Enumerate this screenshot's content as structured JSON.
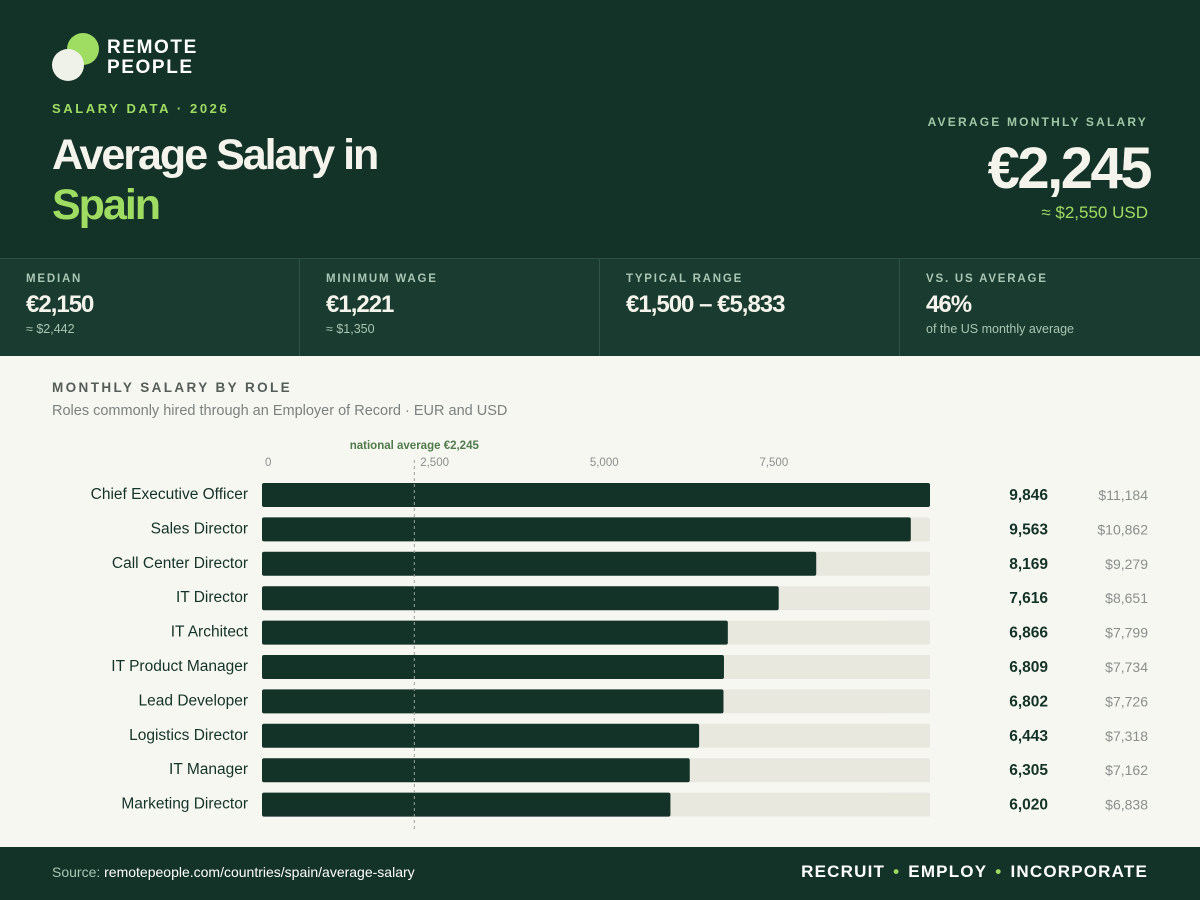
{
  "brand": {
    "line1": "REMOTE",
    "line2": "PEOPLE"
  },
  "header": {
    "eyebrow": "SALARY DATA · 2026",
    "title_line1": "Average Salary in",
    "title_line2": "Spain",
    "hero_label": "AVERAGE MONTHLY SALARY",
    "hero_value": "€2,245",
    "hero_usd": "≈ $2,550 USD"
  },
  "stats": [
    {
      "label": "MEDIAN",
      "value": "€2,150",
      "sub": "≈ $2,442"
    },
    {
      "label": "MINIMUM WAGE",
      "value": "€1,221",
      "sub": "≈ $1,350"
    },
    {
      "label": "TYPICAL RANGE",
      "value": "€1,500 – €5,833",
      "sub": ""
    },
    {
      "label": "VS. US AVERAGE",
      "value": "46%",
      "sub": "of the US monthly average"
    }
  ],
  "section": {
    "title": "MONTHLY SALARY BY ROLE",
    "subtitle": "Roles commonly hired through an Employer of Record · EUR and USD"
  },
  "chart_data": {
    "type": "bar",
    "orientation": "horizontal",
    "xlim": [
      0,
      9846
    ],
    "ticks": [
      0,
      2500,
      5000,
      7500
    ],
    "tick_labels": [
      "0",
      "2,500",
      "5,000",
      "7,500"
    ],
    "reference_line": {
      "value": 2245,
      "label": "national average €2,245"
    },
    "categories": [
      "Chief Executive Officer",
      "Sales Director",
      "Call Center Director",
      "IT Director",
      "IT Architect",
      "IT Product Manager",
      "Lead Developer",
      "Logistics Director",
      "IT Manager",
      "Marketing Director"
    ],
    "values": [
      9846,
      9563,
      8169,
      7616,
      6866,
      6809,
      6802,
      6443,
      6305,
      6020
    ],
    "value_labels": [
      "9,846",
      "9,563",
      "8,169",
      "7,616",
      "6,866",
      "6,809",
      "6,802",
      "6,443",
      "6,305",
      "6,020"
    ],
    "usd_labels": [
      "$11,184",
      "$10,862",
      "$9,279",
      "$8,651",
      "$7,799",
      "$7,734",
      "$7,726",
      "$7,318",
      "$7,162",
      "$6,838"
    ],
    "colors": {
      "bar": "#143328",
      "track": "#e8e8df",
      "label": "#143328",
      "usd": "#8a8f8c",
      "tick": "#8a8f8c",
      "ref": "#4f7a4a"
    }
  },
  "footer": {
    "source_prefix": "Source: ",
    "source_url": "remotepeople.com/countries/spain/average-salary",
    "tagline": [
      "RECRUIT",
      "EMPLOY",
      "INCORPORATE"
    ]
  }
}
